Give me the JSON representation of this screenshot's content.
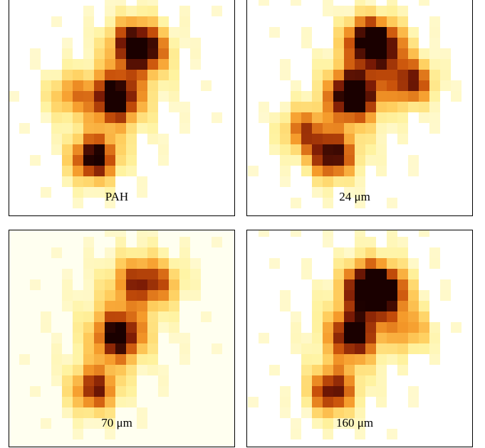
{
  "panels": [
    {
      "label": "PAH"
    },
    {
      "label": "24 μm"
    },
    {
      "label": "70 μm"
    },
    {
      "label": "160 μm"
    }
  ]
}
